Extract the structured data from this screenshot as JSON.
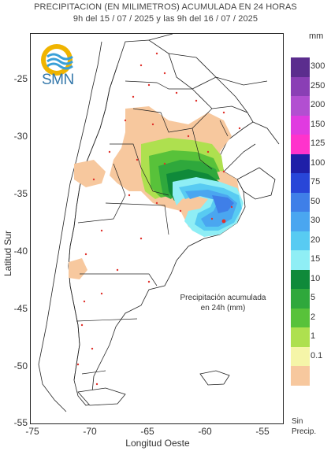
{
  "title_line1": "PRECIPITACION (EN MILIMETROS) ACUMULADA EN 24 HORAS",
  "title_line2": "9h del 15 / 07 / 2025  y las 9h del 16 / 07 / 2025",
  "logo_text": "SMN",
  "axes": {
    "xlabel": "Longitud Oeste",
    "ylabel": "Latitud Sur",
    "xticks": [
      "-75",
      "-70",
      "-65",
      "-60",
      "-55"
    ],
    "yticks": [
      "-25",
      "-30",
      "-35",
      "-40",
      "-45",
      "-50",
      "-55"
    ]
  },
  "annotation": {
    "line1": "Precipitación acumulada",
    "line2": "en 24h (mm)"
  },
  "legend": {
    "unit": "mm",
    "no_precip_line1": "Sin",
    "no_precip_line2": "Precip.",
    "items": [
      {
        "label": "300",
        "color": "#5b2d8e"
      },
      {
        "label": "250",
        "color": "#8a3fb5"
      },
      {
        "label": "200",
        "color": "#b24fd1"
      },
      {
        "label": "150",
        "color": "#e03be0"
      },
      {
        "label": "125",
        "color": "#ff33cc"
      },
      {
        "label": "100",
        "color": "#1f1fa8"
      },
      {
        "label": "75",
        "color": "#2846d8"
      },
      {
        "label": "50",
        "color": "#3f7fe8"
      },
      {
        "label": "30",
        "color": "#4aa6f0"
      },
      {
        "label": "20",
        "color": "#58cbf2"
      },
      {
        "label": "15",
        "color": "#8feef5"
      },
      {
        "label": "10",
        "color": "#0f8a3a"
      },
      {
        "label": "5",
        "color": "#2fa83c"
      },
      {
        "label": "2",
        "color": "#58c23a"
      },
      {
        "label": "1",
        "color": "#aee04f"
      },
      {
        "label": "0.1",
        "color": "#f5f5a8"
      },
      {
        "label": "",
        "color": "#f7c89e"
      }
    ]
  },
  "colors": {
    "land_outline": "#222222",
    "station_dot": "#e0312b",
    "province_line": "#222222"
  }
}
